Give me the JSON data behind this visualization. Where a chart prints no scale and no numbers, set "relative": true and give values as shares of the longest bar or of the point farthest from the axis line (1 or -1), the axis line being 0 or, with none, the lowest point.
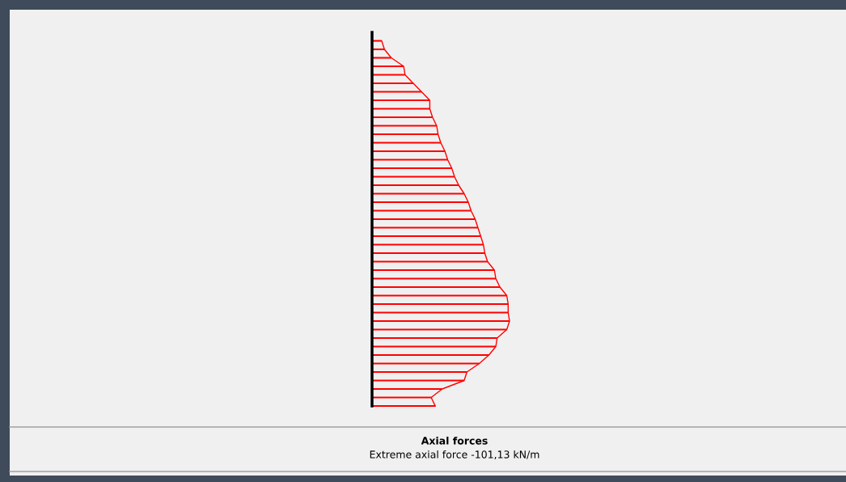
{
  "chart_data": {
    "type": "bar",
    "orientation": "horizontal",
    "relative": true,
    "title": "Axial forces",
    "subtitle": "Extreme axial force -101,13 kN/m",
    "color": "#ff0000",
    "categories": [
      null,
      null,
      null,
      null,
      null,
      null,
      null,
      null,
      null,
      null,
      null,
      null,
      null,
      null,
      null,
      null,
      null,
      null,
      null,
      null,
      null,
      null,
      null,
      null,
      null,
      null,
      null,
      null,
      null,
      null,
      null,
      null,
      null,
      null,
      null,
      null,
      null,
      null,
      null,
      null,
      null,
      null,
      null,
      null
    ],
    "values": [
      0.07,
      0.09,
      0.14,
      0.23,
      0.24,
      0.3,
      0.36,
      0.42,
      0.42,
      0.44,
      0.47,
      0.48,
      0.5,
      0.53,
      0.55,
      0.58,
      0.6,
      0.63,
      0.67,
      0.7,
      0.72,
      0.75,
      0.77,
      0.79,
      0.81,
      0.82,
      0.84,
      0.89,
      0.9,
      0.93,
      0.98,
      0.99,
      0.99,
      1,
      0.98,
      0.91,
      0.9,
      0.85,
      0.78,
      0.69,
      0.67,
      0.51,
      0.43,
      0.46
    ],
    "legend": false
  }
}
